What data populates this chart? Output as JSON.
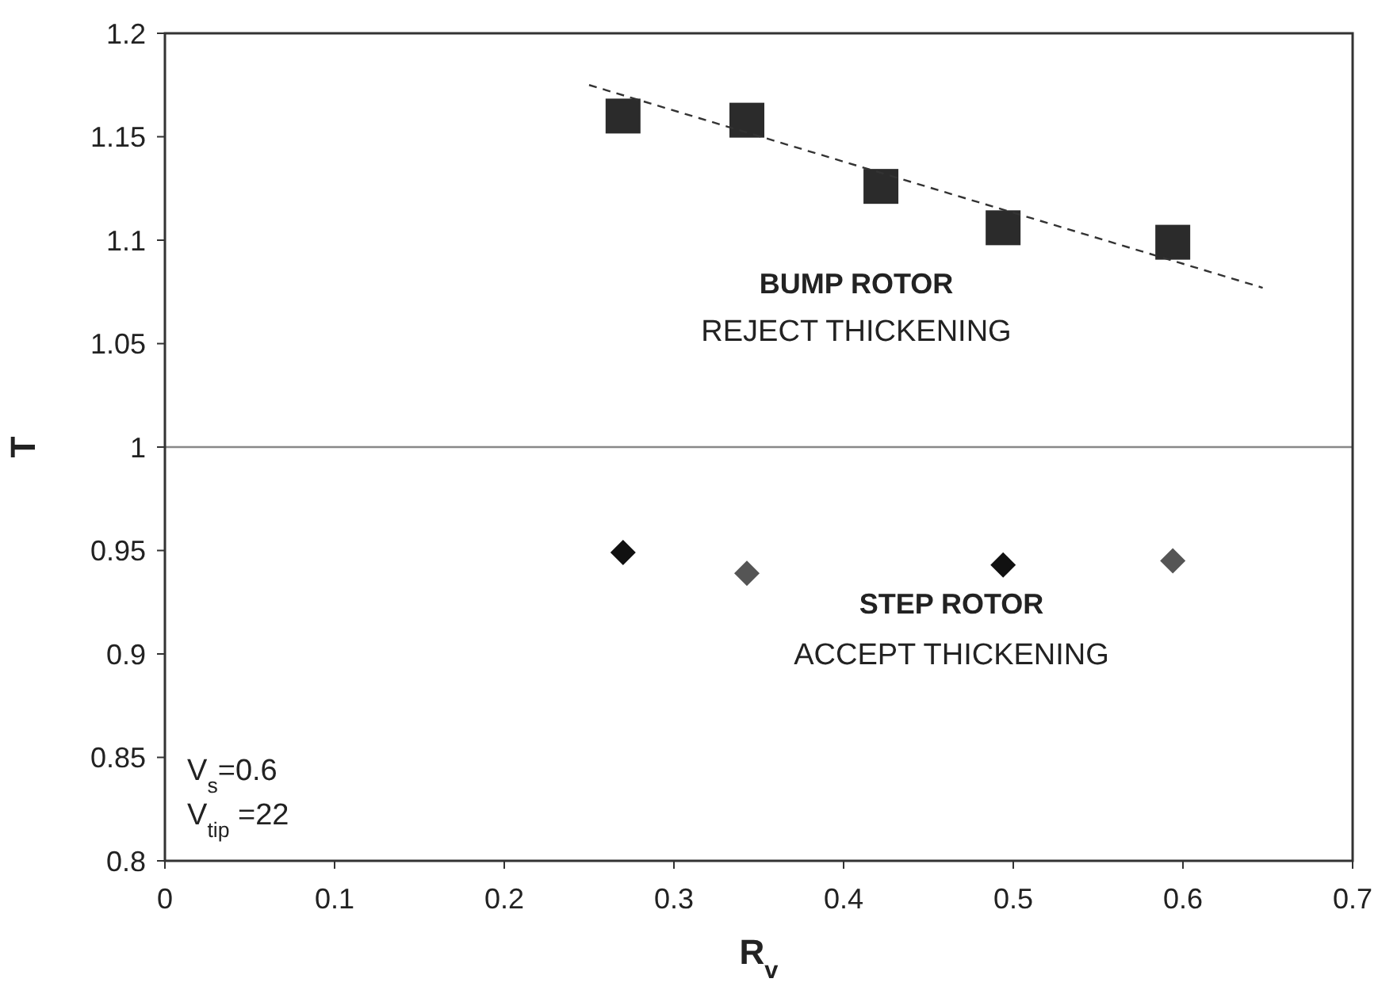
{
  "chart_data": {
    "type": "scatter",
    "xlabel": "R$_{v}$",
    "ylabel": "T",
    "xlim": [
      0,
      0.7
    ],
    "xticks": [
      0,
      0.1,
      0.2,
      0.3,
      0.4,
      0.5,
      0.6,
      0.7
    ],
    "ylim": [
      0.8,
      1.2
    ],
    "yticks": [
      0.8,
      0.85,
      0.9,
      0.95,
      1,
      1.05,
      1.1,
      1.15,
      1.2
    ],
    "grid": false,
    "series": [
      {
        "type": "scatter",
        "marker": "square",
        "color": "#2b2b2b",
        "x": [
          0.27,
          0.343,
          0.422,
          0.494,
          0.594
        ],
        "values": [
          1.16,
          1.158,
          1.126,
          1.106,
          1.099
        ]
      },
      {
        "type": "scatter",
        "marker": "diamond",
        "colors": [
          "#111111",
          "#555555",
          "#111111",
          "#555555"
        ],
        "x": [
          0.27,
          0.343,
          0.494,
          0.594
        ],
        "values": [
          0.949,
          0.939,
          0.943,
          0.945
        ]
      },
      {
        "type": "line",
        "line_style": "dashed",
        "marker": "none",
        "color": "#333333",
        "x": [
          0.25,
          0.647
        ],
        "values": [
          1.175,
          1.077
        ]
      }
    ],
    "ref_lines": [
      {
        "axis": "y",
        "value": 1,
        "color": "#888888"
      }
    ],
    "annotations": [
      "BUMP ROTOR",
      "REJECT THICKENING",
      "STEP ROTOR",
      "ACCEPT THICKENING",
      "V$_{s}$=0.6",
      "V$_{tip}$ =22"
    ]
  }
}
